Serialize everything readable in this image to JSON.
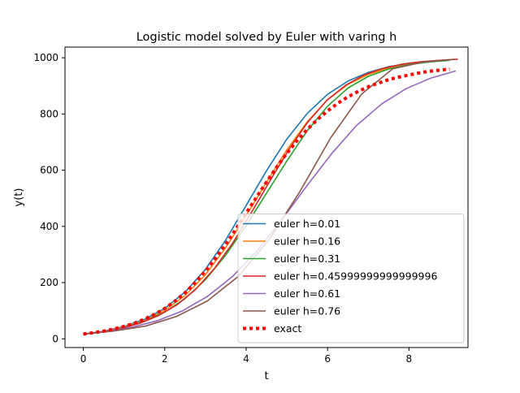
{
  "chart_data": {
    "type": "line",
    "title": "Logistic model solved by Euler with varing h",
    "xlabel": "t",
    "ylabel": "y(t)",
    "xlim": [
      -0.45,
      9.45
    ],
    "ylim": [
      -31,
      1038
    ],
    "xticks": [
      0,
      2,
      4,
      6,
      8
    ],
    "yticks": [
      0,
      200,
      400,
      600,
      800,
      1000
    ],
    "grid": false,
    "legend_position": "lower-right",
    "series": [
      {
        "name": "euler h=0.01",
        "color": "#1f77b4",
        "style": "solid",
        "x": [
          0,
          0.5,
          1,
          1.5,
          2,
          2.5,
          3,
          3.5,
          4,
          4.5,
          5,
          5.5,
          6,
          6.5,
          7,
          7.5,
          8,
          8.5,
          9
        ],
        "y": [
          17,
          27,
          44,
          69,
          108,
          166,
          247,
          352,
          474,
          598,
          711,
          802,
          870,
          917,
          948,
          968,
          980,
          988,
          993
        ]
      },
      {
        "name": "euler h=0.16",
        "color": "#ff7f0e",
        "style": "solid",
        "x": [
          0,
          0.5,
          1,
          1.5,
          2,
          2.5,
          3,
          3.5,
          4,
          4.5,
          5,
          5.5,
          6,
          6.5,
          7,
          7.5,
          8,
          8.5,
          9
        ],
        "y": [
          17,
          26,
          42,
          65,
          101,
          154,
          228,
          325,
          438,
          557,
          673,
          772,
          851,
          905,
          941,
          963,
          977,
          986,
          992
        ]
      },
      {
        "name": "euler h=0.31",
        "color": "#2ca02c",
        "style": "solid",
        "x": [
          0,
          0.5,
          1,
          1.5,
          2,
          2.5,
          3,
          3.5,
          4,
          4.5,
          5,
          5.5,
          6,
          6.5,
          7,
          7.5,
          8,
          8.5,
          9
        ],
        "y": [
          17,
          25,
          40,
          62,
          95,
          143,
          210,
          298,
          403,
          518,
          633,
          740,
          828,
          892,
          934,
          960,
          976,
          985,
          991
        ]
      },
      {
        "name": "euler h=0.45999999999999996",
        "color": "#d62728",
        "style": "solid",
        "x": [
          0,
          0.46,
          0.92,
          1.38,
          1.84,
          2.3,
          2.76,
          3.22,
          3.68,
          4.14,
          4.6,
          5.06,
          5.52,
          5.98,
          6.44,
          6.9,
          7.36,
          7.82,
          8.28,
          8.74,
          9.2
        ],
        "y": [
          17,
          25,
          37,
          55,
          82,
          121,
          176,
          250,
          343,
          452,
          566,
          676,
          772,
          848,
          902,
          939,
          962,
          977,
          986,
          991,
          995
        ]
      },
      {
        "name": "euler h=0.61",
        "color": "#9467bd",
        "style": "solid",
        "x": [
          0,
          0.61,
          1.22,
          1.83,
          2.44,
          3.05,
          3.66,
          4.27,
          4.88,
          5.49,
          6.1,
          6.71,
          7.32,
          7.93,
          8.54,
          9.15
        ],
        "y": [
          17,
          27,
          42,
          65,
          100,
          151,
          221,
          313,
          424,
          544,
          659,
          759,
          835,
          890,
          928,
          953
        ]
      },
      {
        "name": "euler h=0.76",
        "color": "#8c564b",
        "style": "solid",
        "x": [
          0,
          0.76,
          1.52,
          2.28,
          3.04,
          3.8,
          4.56,
          5.32,
          6.08,
          6.84,
          7.6,
          8.36,
          9.12
        ],
        "y": [
          17,
          28,
          45,
          79,
          134,
          221,
          352,
          524,
          716,
          871,
          961,
          985,
          995
        ]
      },
      {
        "name": "exact",
        "color": "#ff0000",
        "style": "dotted",
        "x": [
          0,
          0.25,
          0.5,
          0.75,
          1,
          1.25,
          1.5,
          1.75,
          2,
          2.25,
          2.5,
          2.75,
          3,
          3.25,
          3.5,
          3.75,
          4,
          4.25,
          4.5,
          4.75,
          5,
          5.25,
          5.5,
          5.75,
          6,
          6.25,
          6.5,
          6.75,
          7,
          7.25,
          7.5,
          7.75,
          8,
          8.25,
          8.5,
          8.75,
          9
        ],
        "y": [
          17,
          22,
          27,
          35,
          44,
          55,
          70,
          87,
          108,
          134,
          164,
          200,
          241,
          287,
          337,
          391,
          447,
          503,
          558,
          611,
          660,
          705,
          745,
          780,
          811,
          838,
          861,
          880,
          897,
          910,
          922,
          931,
          939,
          946,
          952,
          956,
          960
        ]
      }
    ]
  }
}
